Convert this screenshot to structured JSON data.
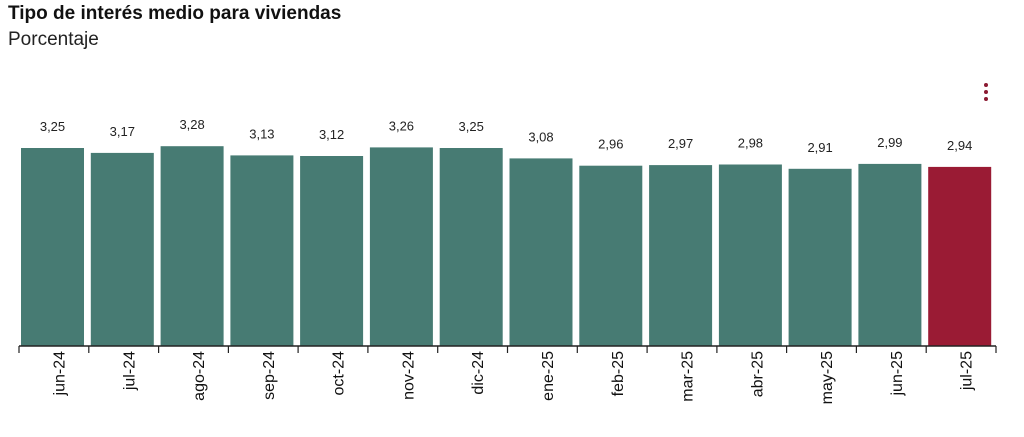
{
  "title": "Tipo de interés medio para viviendas",
  "subtitle": "Porcentaje",
  "menu_icon": "more-vertical-icon",
  "colors": {
    "bar": "#477b73",
    "highlight": "#9a1b34",
    "menu": "#8b1a32",
    "axis": "#222222"
  },
  "chart_data": {
    "type": "bar",
    "categories": [
      "jun-24",
      "jul-24",
      "ago-24",
      "sep-24",
      "oct-24",
      "nov-24",
      "dic-24",
      "ene-25",
      "feb-25",
      "mar-25",
      "abr-25",
      "may-25",
      "jun-25",
      "jul-25"
    ],
    "values": [
      3.25,
      3.17,
      3.28,
      3.13,
      3.12,
      3.26,
      3.25,
      3.08,
      2.96,
      2.97,
      2.98,
      2.91,
      2.99,
      2.94
    ],
    "value_labels": [
      "3,25",
      "3,17",
      "3,28",
      "3,13",
      "3,12",
      "3,26",
      "3,25",
      "3,08",
      "2,96",
      "2,97",
      "2,98",
      "2,91",
      "2,99",
      "2,94"
    ],
    "highlight_index": 13,
    "title": "Tipo de interés medio para viviendas",
    "ylabel": "Porcentaje",
    "xlabel": "",
    "ylim": [
      0,
      3.3
    ],
    "grid": false,
    "legend": "none",
    "tick_label_rotation": -90
  }
}
